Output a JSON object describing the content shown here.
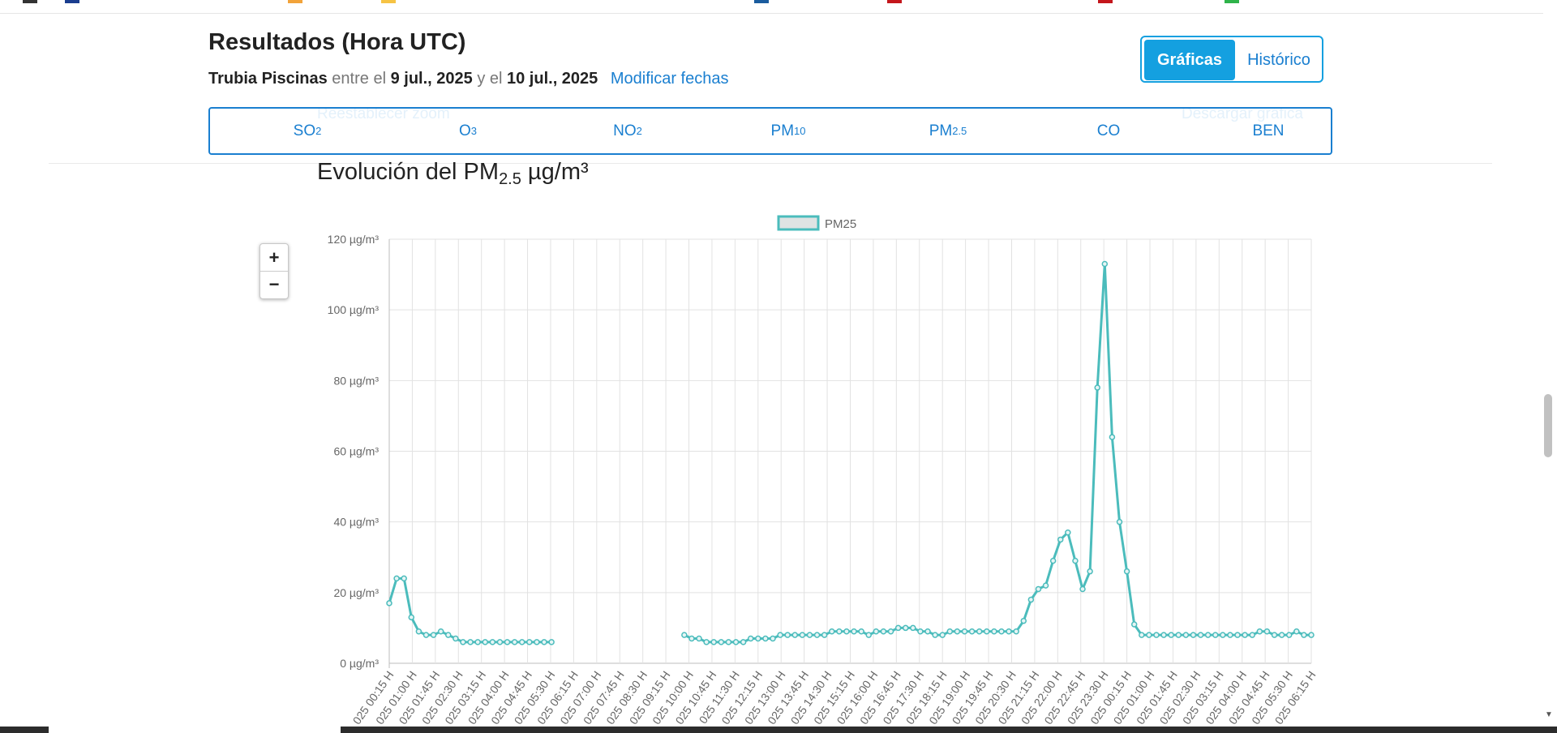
{
  "header": {
    "title": "Resultados (Hora UTC)",
    "station": "Trubia Piscinas",
    "between": "entre el",
    "date_from": "9 jul., 2025",
    "and": "y el",
    "date_to": "10 jul., 2025",
    "modify_link": "Modificar fechas"
  },
  "view_tabs": {
    "graphs": "Gráficas",
    "history": "Histórico"
  },
  "pollutants": [
    {
      "base": "SO",
      "sub": "2"
    },
    {
      "base": "O",
      "sub": "3"
    },
    {
      "base": "NO",
      "sub": "2"
    },
    {
      "base": "PM",
      "sub": "10"
    },
    {
      "base": "PM",
      "sub": "2.5"
    },
    {
      "base": "CO",
      "sub": ""
    },
    {
      "base": "BEN",
      "sub": ""
    }
  ],
  "ghost_buttons": {
    "reset_zoom": "Reestablecer zoom",
    "download": "Descargar gráfica"
  },
  "chart_heading": {
    "prefix": "Evolución del PM",
    "sub": "2.5",
    "suffix": " µg/m³"
  },
  "zoom": {
    "in": "+",
    "out": "−"
  },
  "colors": {
    "accent": "#14a0e0",
    "link": "#1a7fd0",
    "series": "#4bbcbc"
  },
  "chart_data": {
    "type": "line",
    "legend": [
      "PM25"
    ],
    "legend_position": "top-center",
    "y_unit": "µg/m³",
    "ylim": [
      0,
      120
    ],
    "yticks": [
      0,
      20,
      40,
      60,
      80,
      100,
      120
    ],
    "grid": true,
    "x_tick_labels": [
      "025 00:15 H",
      "025 01:00 H",
      "025 01:45 H",
      "025 02:30 H",
      "025 03:15 H",
      "025 04:00 H",
      "025 04:45 H",
      "025 05:30 H",
      "025 06:15 H",
      "025 07:00 H",
      "025 07:45 H",
      "025 08:30 H",
      "025 09:15 H",
      "025 10:00 H",
      "025 10:45 H",
      "025 11:30 H",
      "025 12:15 H",
      "025 13:00 H",
      "025 13:45 H",
      "025 14:30 H",
      "025 15:15 H",
      "025 16:00 H",
      "025 16:45 H",
      "025 17:30 H",
      "025 18:15 H",
      "025 19:00 H",
      "025 19:45 H",
      "025 20:30 H",
      "025 21:15 H",
      "025 22:00 H",
      "025 22:45 H",
      "025 23:30 H",
      "025 00:15 H",
      "025 01:00 H",
      "025 01:45 H",
      "025 02:30 H",
      "025 03:15 H",
      "025 04:00 H",
      "025 04:45 H",
      "025 05:30 H",
      "025 06:15 H"
    ],
    "series": [
      {
        "name": "PM25",
        "values": [
          17,
          24,
          24,
          13,
          9,
          8,
          8,
          9,
          8,
          7,
          6,
          6,
          6,
          6,
          6,
          6,
          6,
          6,
          6,
          6,
          6,
          6,
          6,
          null,
          null,
          null,
          null,
          null,
          null,
          null,
          null,
          null,
          null,
          null,
          null,
          null,
          null,
          null,
          null,
          null,
          8,
          7,
          7,
          6,
          6,
          6,
          6,
          6,
          6,
          7,
          7,
          7,
          7,
          8,
          8,
          8,
          8,
          8,
          8,
          8,
          9,
          9,
          9,
          9,
          9,
          8,
          9,
          9,
          9,
          10,
          10,
          10,
          9,
          9,
          8,
          8,
          9,
          9,
          9,
          9,
          9,
          9,
          9,
          9,
          9,
          9,
          12,
          18,
          21,
          22,
          29,
          35,
          37,
          29,
          21,
          26,
          78,
          113,
          64,
          40,
          26,
          11,
          8,
          8,
          8,
          8,
          8,
          8,
          8,
          8,
          8,
          8,
          8,
          8,
          8,
          8,
          8,
          8,
          9,
          9,
          8,
          8,
          8,
          9,
          8,
          8
        ]
      }
    ]
  }
}
